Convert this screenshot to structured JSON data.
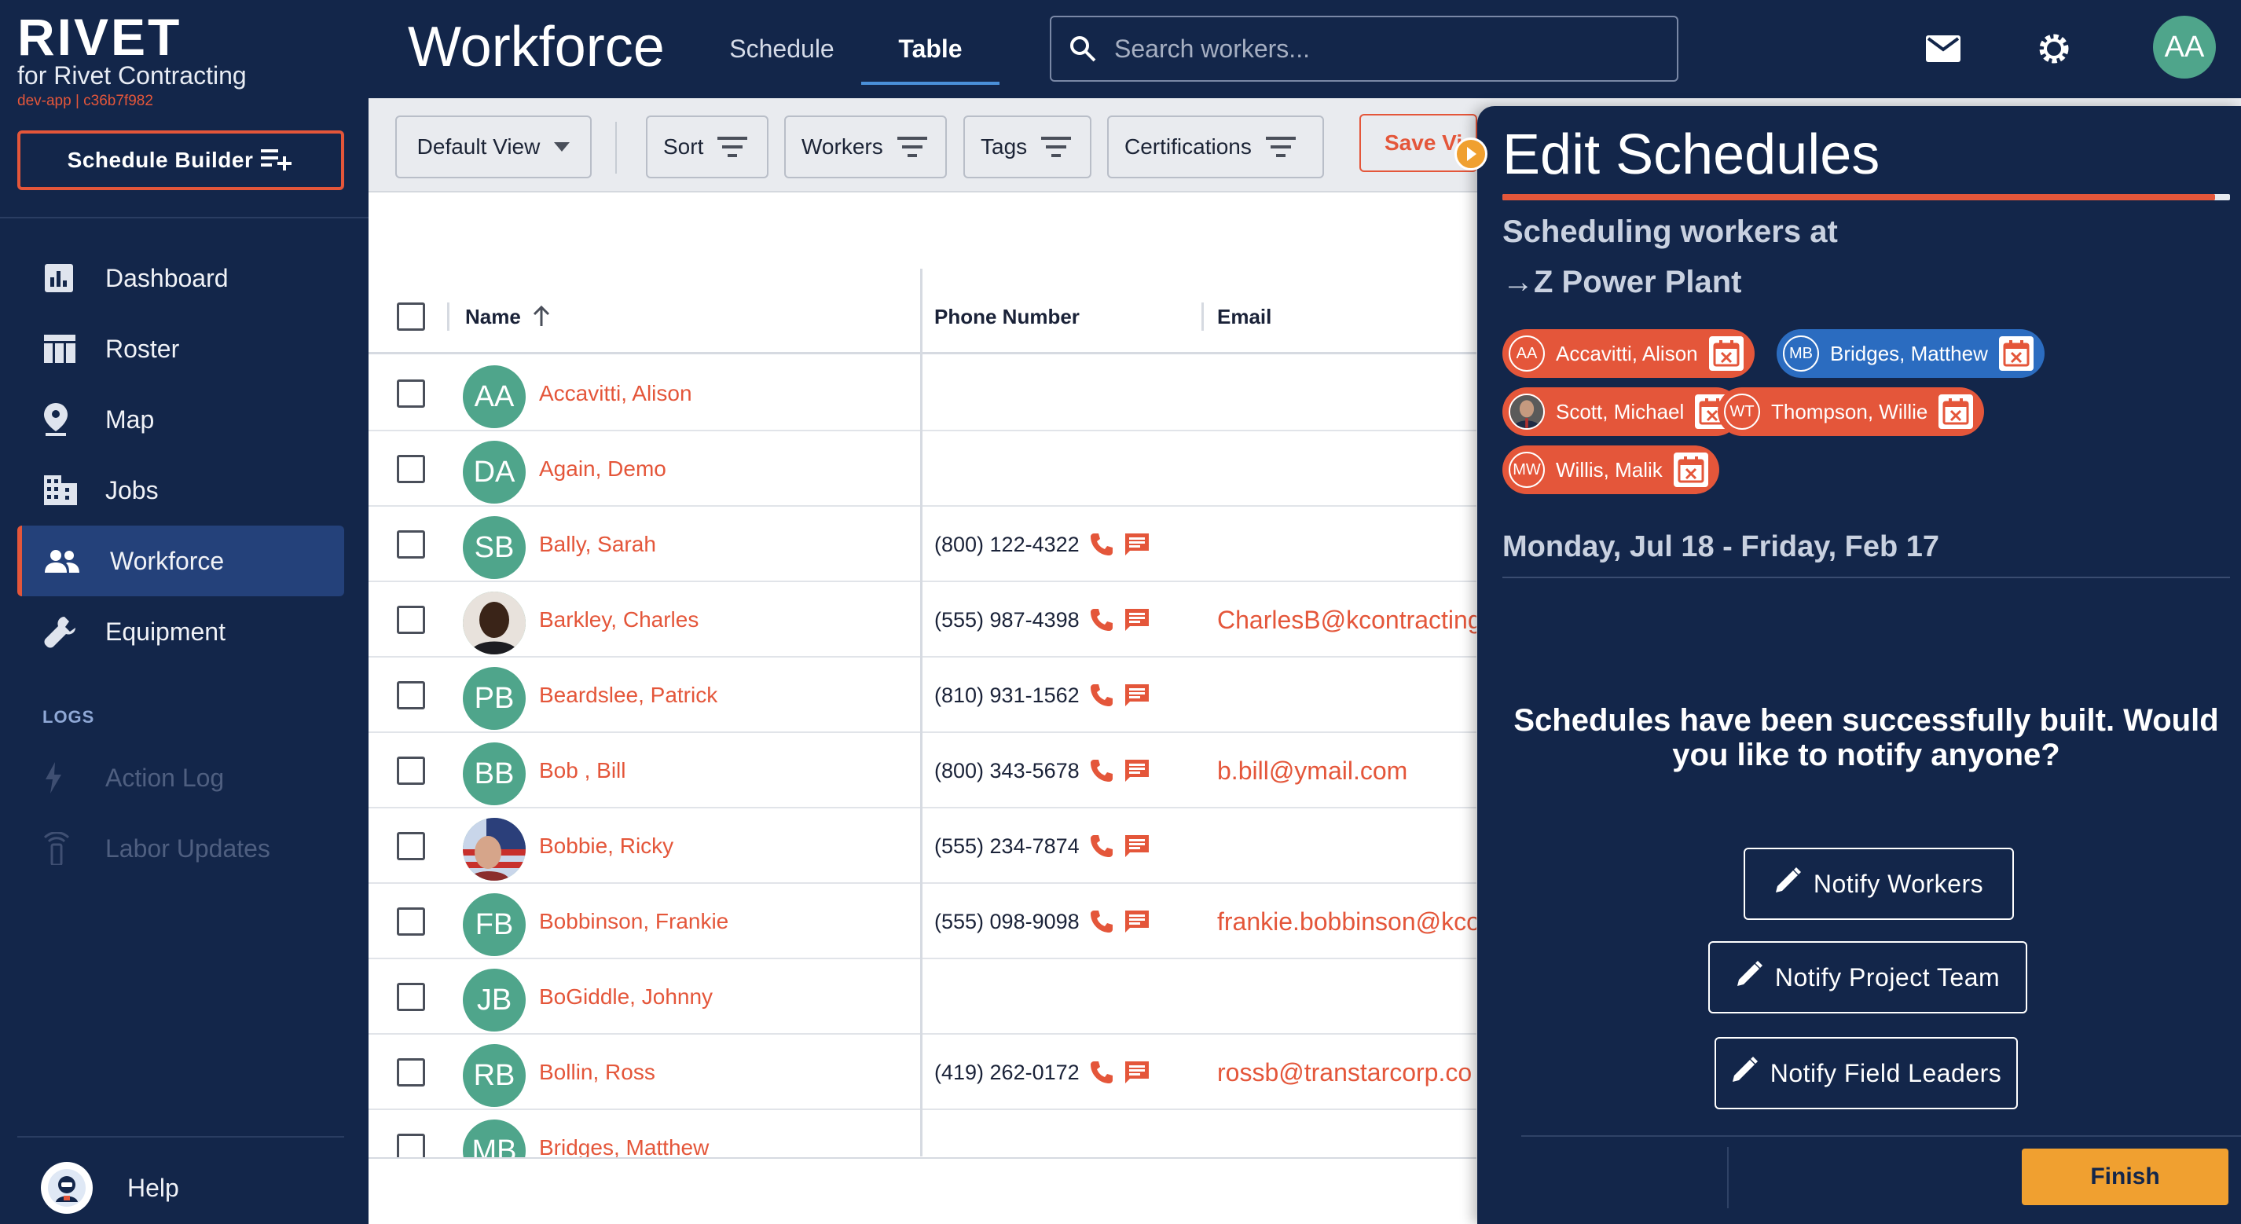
{
  "brand": {
    "name": "RIVET",
    "subtitle": "for Rivet Contracting",
    "env": "dev-app | c36b7f982"
  },
  "sidebar": {
    "builder_label": "Schedule Builder",
    "items": [
      {
        "label": "Dashboard",
        "icon": "dashboard-icon"
      },
      {
        "label": "Roster",
        "icon": "roster-icon"
      },
      {
        "label": "Map",
        "icon": "map-pin-icon"
      },
      {
        "label": "Jobs",
        "icon": "building-icon"
      },
      {
        "label": "Workforce",
        "icon": "people-icon",
        "active": true
      },
      {
        "label": "Equipment",
        "icon": "wrench-icon"
      }
    ],
    "logs_heading": "LOGS",
    "logs": [
      {
        "label": "Action Log",
        "icon": "bolt-icon",
        "disabled": true
      },
      {
        "label": "Labor Updates",
        "icon": "broadcast-icon",
        "disabled": true
      }
    ],
    "help_label": "Help"
  },
  "header": {
    "title": "Workforce",
    "tabs": [
      {
        "label": "Schedule"
      },
      {
        "label": "Table",
        "active": true
      }
    ],
    "search_placeholder": "Search workers...",
    "user_initials": "AA"
  },
  "toolbar": {
    "view_label": "Default View",
    "sort_label": "Sort",
    "workers_label": "Workers",
    "tags_label": "Tags",
    "certs_label": "Certifications",
    "save_label": "Save View"
  },
  "table": {
    "columns": {
      "name": "Name",
      "phone": "Phone Number",
      "email": "Email"
    },
    "rows": [
      {
        "initials": "AA",
        "name": "Accavitti, Alison",
        "phone": "",
        "email": ""
      },
      {
        "initials": "DA",
        "name": "Again, Demo",
        "phone": "",
        "email": ""
      },
      {
        "initials": "SB",
        "name": "Bally, Sarah",
        "phone": "(800) 122-4322",
        "email": ""
      },
      {
        "initials": "",
        "photo": "dark",
        "name": "Barkley, Charles",
        "phone": "(555) 987-4398",
        "email": "CharlesB@kcontracting"
      },
      {
        "initials": "PB",
        "name": "Beardslee, Patrick",
        "phone": "(810) 931-1562",
        "email": ""
      },
      {
        "initials": "BB",
        "name": "Bob , Bill",
        "phone": "(800) 343-5678",
        "email": "b.bill@ymail.com"
      },
      {
        "initials": "",
        "photo": "flag",
        "name": "Bobbie, Ricky",
        "phone": "(555) 234-7874",
        "email": ""
      },
      {
        "initials": "FB",
        "name": "Bobbinson, Frankie",
        "phone": "(555) 098-9098",
        "email": "frankie.bobbinson@kco"
      },
      {
        "initials": "JB",
        "name": "BoGiddle, Johnny",
        "phone": "",
        "email": ""
      },
      {
        "initials": "RB",
        "name": "Bollin, Ross",
        "phone": "(419) 262-0172",
        "email": "rossb@transtarcorp.co"
      },
      {
        "initials": "MB",
        "name": "Bridges, Matthew",
        "phone": "",
        "email": ""
      }
    ]
  },
  "panel": {
    "title": "Edit Schedules",
    "progress": 0.98,
    "heading_line1": "Scheduling workers at",
    "heading_line2": "→Z Power Plant",
    "chips": [
      {
        "initials": "AA",
        "name": "Accavitti, Alison",
        "color": "red"
      },
      {
        "initials": "MB",
        "name": "Bridges, Matthew",
        "color": "blue"
      },
      {
        "initials": "",
        "name": "Scott, Michael",
        "color": "red",
        "photo": true
      },
      {
        "initials": "WT",
        "name": "Thompson, Willie",
        "color": "red"
      },
      {
        "initials": "MW",
        "name": "Willis, Malik",
        "color": "red"
      }
    ],
    "date_range": "Monday, Jul 18 - Friday, Feb 17",
    "success_message": "Schedules have been successfully built. Would you like to notify anyone?",
    "notify_workers": "Notify Workers",
    "notify_project_team": "Notify Project Team",
    "notify_field_leaders": "Notify Field Leaders",
    "finish_label": "Finish"
  },
  "colors": {
    "navy": "#13264a",
    "accent": "#e4563a",
    "teal": "#4fa58b",
    "blue": "#2b6cc0",
    "orange": "#f0a030"
  }
}
